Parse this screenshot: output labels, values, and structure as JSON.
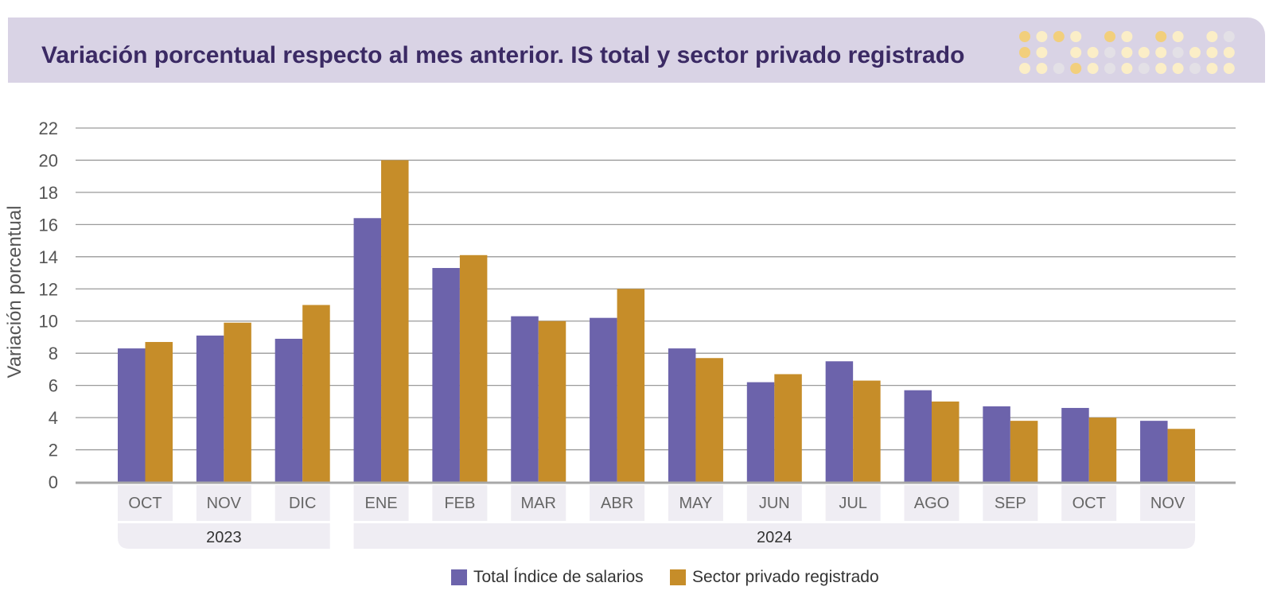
{
  "title": "Variación porcentual respecto al mes anterior. IS total y sector privado registrado",
  "colors": {
    "banner": "#d9d3e5",
    "title": "#3b2a64",
    "series1": "#6c63ab",
    "series2": "#c68d29",
    "grid": "#9a9a9a",
    "dot_gold": "#f2cf7c",
    "dot_cream": "#fbeec7",
    "dot_gray": "#e3e0e6"
  },
  "chart_data": {
    "type": "bar",
    "ylabel": "Variación porcentual",
    "ylim": [
      0,
      22
    ],
    "yticks": [
      0,
      2,
      4,
      6,
      8,
      10,
      12,
      14,
      16,
      18,
      20,
      22
    ],
    "grid": true,
    "legend_position": "bottom",
    "categories": [
      "OCT",
      "NOV",
      "DIC",
      "ENE",
      "FEB",
      "MAR",
      "ABR",
      "MAY",
      "JUN",
      "JUL",
      "AGO",
      "SEP",
      "OCT",
      "NOV"
    ],
    "year_groups": [
      {
        "label": "2023",
        "span": 3
      },
      {
        "label": "2024",
        "span": 11
      }
    ],
    "series": [
      {
        "name": "Total Índice de salarios",
        "values": [
          8.3,
          9.1,
          8.9,
          16.4,
          13.3,
          10.3,
          10.2,
          8.3,
          6.2,
          7.5,
          5.7,
          4.7,
          4.6,
          3.8
        ]
      },
      {
        "name": "Sector privado registrado",
        "values": [
          8.7,
          9.9,
          11.0,
          20.0,
          14.1,
          10.0,
          12.0,
          7.7,
          6.7,
          6.3,
          5.0,
          3.8,
          4.0,
          3.3
        ]
      }
    ]
  }
}
